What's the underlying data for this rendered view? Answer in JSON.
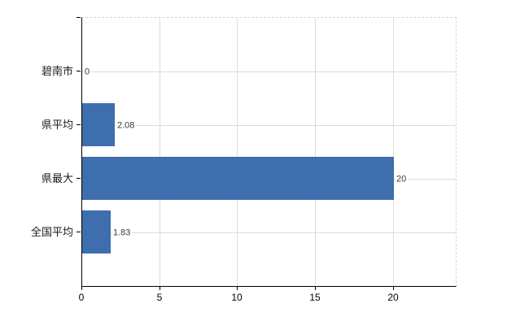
{
  "chart_data": {
    "type": "bar",
    "orientation": "horizontal",
    "categories": [
      "碧南市",
      "県平均",
      "県最大",
      "全国平均"
    ],
    "values": [
      0,
      2.08,
      20,
      1.83
    ],
    "value_labels": [
      "0",
      "2.08",
      "20",
      "1.83"
    ],
    "x_ticks": [
      0,
      5,
      10,
      15,
      20
    ],
    "x_tick_labels": [
      "0",
      "5",
      "10",
      "15",
      "20"
    ],
    "xlim": [
      0,
      24
    ],
    "grid": true,
    "legend": false,
    "colors": {
      "bar": "#3e6eae",
      "gridline": "#d9ddd9",
      "axis": "#000000",
      "border_dashed": "#d6d6d6",
      "value_label": "#3a3a3a",
      "tick_label": "#000000"
    }
  }
}
